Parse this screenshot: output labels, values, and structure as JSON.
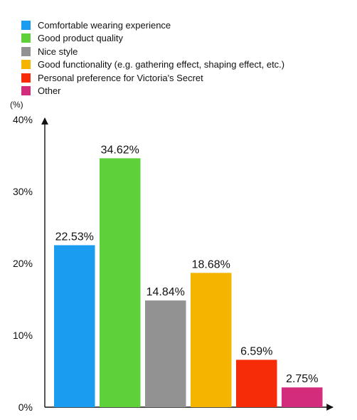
{
  "chart_data": {
    "type": "bar",
    "title": "",
    "xlabel": "",
    "ylabel": "(%)",
    "ylim": [
      0,
      40
    ],
    "yticks": [
      0,
      10,
      20,
      30,
      40
    ],
    "ytick_labels": [
      "0%",
      "10%",
      "20%",
      "30%",
      "40%"
    ],
    "grid": false,
    "legend_position": "top-left",
    "categories": [
      "Comfortable wearing experience",
      "Good product quality",
      "Nice style",
      "Good functionality (e.g. gathering effect, shaping effect, etc.)",
      "Personal preference for Victoria's Secret",
      "Other"
    ],
    "values": [
      22.53,
      34.62,
      14.84,
      18.68,
      6.59,
      2.75
    ],
    "value_labels": [
      "22.53%",
      "34.62%",
      "14.84%",
      "18.68%",
      "6.59%",
      "2.75%"
    ],
    "colors": [
      "#1a9cf0",
      "#5ed13a",
      "#929292",
      "#f5b400",
      "#f52c07",
      "#d42c7c"
    ]
  }
}
